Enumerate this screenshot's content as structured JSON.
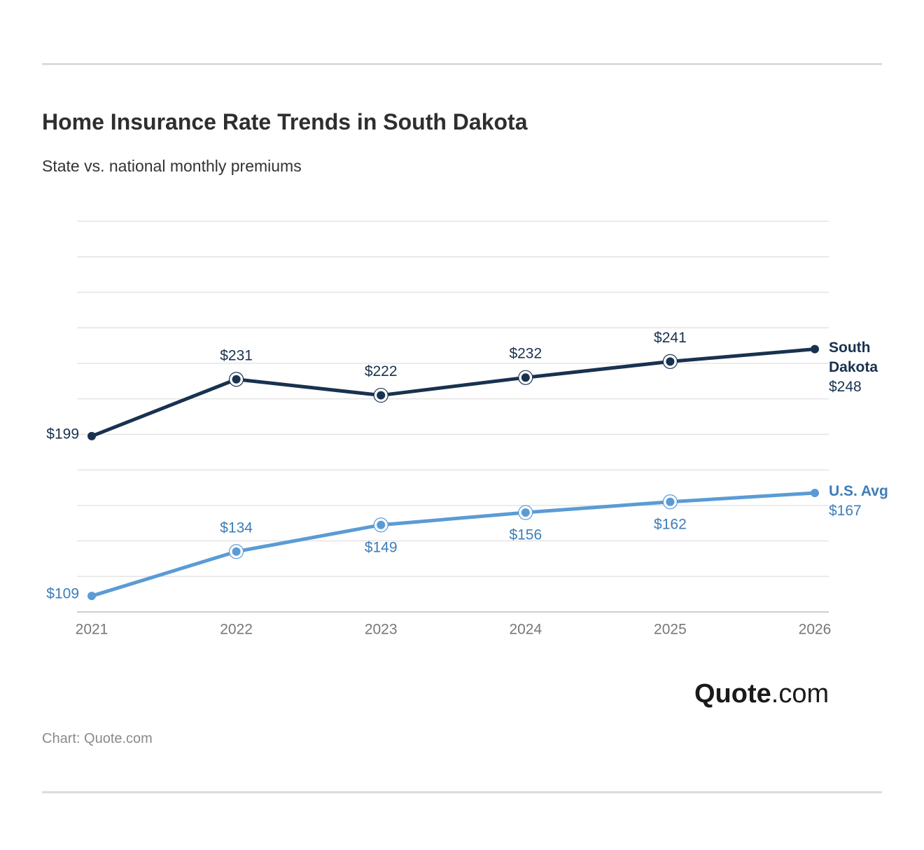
{
  "chart_data": {
    "type": "line",
    "title": "Home Insurance Rate Trends in South Dakota",
    "subtitle": "State vs. national monthly premiums",
    "categories": [
      "2021",
      "2022",
      "2023",
      "2024",
      "2025",
      "2026"
    ],
    "series": [
      {
        "name": "South Dakota",
        "color": "#18324f",
        "label_color": "#18324f",
        "values": [
          199,
          231,
          222,
          232,
          241,
          248
        ],
        "value_labels": [
          "$199",
          "$231",
          "$222",
          "$232",
          "$241",
          "$248"
        ]
      },
      {
        "name": "U.S. Avg",
        "color": "#5b9bd5",
        "label_color": "#3d7db8",
        "values": [
          109,
          134,
          149,
          156,
          162,
          167
        ],
        "value_labels": [
          "$109",
          "$134",
          "$149",
          "$156",
          "$162",
          "$167"
        ]
      }
    ],
    "ylim": [
      100,
      320
    ],
    "yticks": [
      100,
      120,
      140,
      160,
      180,
      200,
      220,
      240,
      260,
      280,
      300,
      320
    ],
    "grid": true,
    "source": "Chart: Quote.com",
    "logo": {
      "brand": "Quote",
      "suffix": ".com"
    }
  }
}
